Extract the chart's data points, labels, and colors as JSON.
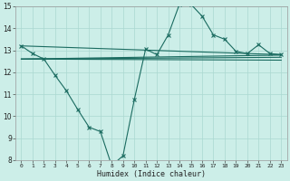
{
  "xlabel": "Humidex (Indice chaleur)",
  "x_min": 0,
  "x_max": 23,
  "y_min": 8,
  "y_max": 15,
  "background_color": "#cceee8",
  "grid_color": "#aad8d0",
  "line_color": "#1a6b60",
  "line1_x": [
    0,
    1,
    2,
    3,
    4,
    5,
    6,
    7,
    8,
    9,
    10,
    11,
    12,
    13,
    14,
    15,
    16,
    17,
    18,
    19,
    20,
    21,
    22,
    23
  ],
  "line1_y": [
    13.2,
    12.85,
    12.6,
    11.85,
    11.15,
    10.3,
    9.5,
    9.3,
    7.75,
    8.2,
    10.75,
    13.05,
    12.8,
    13.7,
    15.1,
    15.1,
    14.55,
    13.7,
    13.5,
    12.95,
    12.85,
    13.25,
    12.85,
    12.8
  ],
  "flat_lines": [
    {
      "x": [
        0,
        23
      ],
      "y": [
        13.2,
        12.8
      ]
    },
    {
      "x": [
        0,
        23
      ],
      "y": [
        12.6,
        12.75
      ]
    },
    {
      "x": [
        0,
        23
      ],
      "y": [
        12.6,
        12.65
      ]
    },
    {
      "x": [
        0,
        23
      ],
      "y": [
        12.6,
        12.55
      ]
    }
  ]
}
